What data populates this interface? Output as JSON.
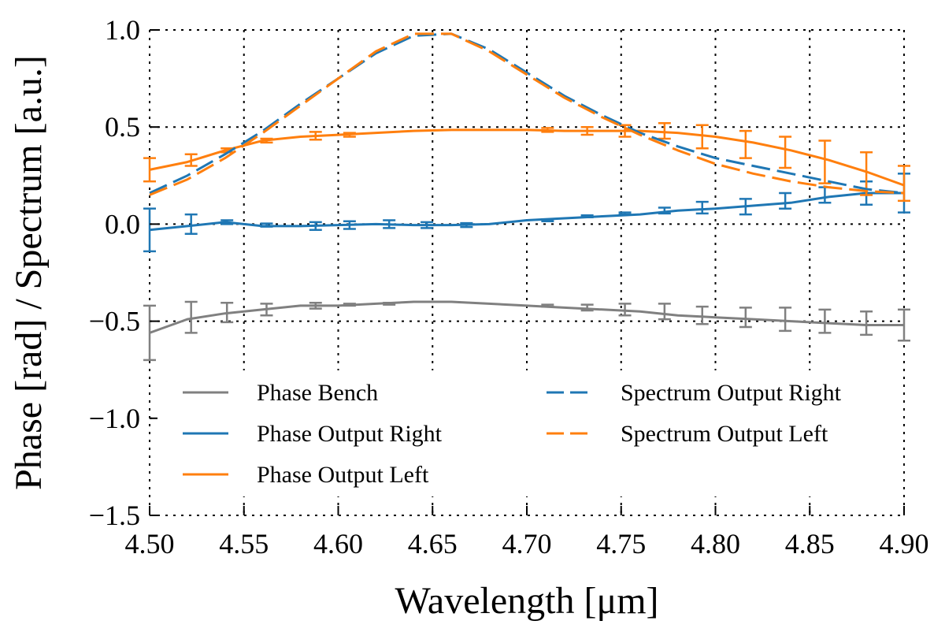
{
  "colors": {
    "bench": "#808080",
    "right": "#1f77b4",
    "left": "#ff7f0e",
    "grid": "#000000"
  },
  "chart_data": {
    "type": "line",
    "title": "",
    "xlabel": "Wavelength [μm]",
    "ylabel": "Phase [rad] / Spectrum [a.u.]",
    "xlim": [
      4.5,
      4.9
    ],
    "ylim": [
      -1.5,
      1.0
    ],
    "xticks": [
      4.5,
      4.55,
      4.6,
      4.65,
      4.7,
      4.75,
      4.8,
      4.85,
      4.9
    ],
    "xtick_labels": [
      "4.50",
      "4.55",
      "4.60",
      "4.65",
      "4.70",
      "4.75",
      "4.80",
      "4.85",
      "4.90"
    ],
    "yticks": [
      -1.5,
      -1.0,
      -0.5,
      0.0,
      0.5,
      1.0
    ],
    "ytick_labels": [
      "−1.5",
      "−1.0",
      "−0.5",
      "0.0",
      "0.5",
      "1.0"
    ],
    "grid": true,
    "legend_position": "lower-center",
    "series": [
      {
        "name": "Phase Bench",
        "key": "bench",
        "style": "solid",
        "x": [
          4.5,
          4.52,
          4.54,
          4.56,
          4.58,
          4.6,
          4.62,
          4.64,
          4.66,
          4.68,
          4.7,
          4.72,
          4.74,
          4.76,
          4.78,
          4.8,
          4.82,
          4.84,
          4.86,
          4.88,
          4.9
        ],
        "y": [
          -0.56,
          -0.49,
          -0.46,
          -0.44,
          -0.42,
          -0.42,
          -0.41,
          -0.4,
          -0.4,
          -0.41,
          -0.42,
          -0.43,
          -0.44,
          -0.45,
          -0.47,
          -0.48,
          -0.49,
          -0.5,
          -0.51,
          -0.52,
          -0.52
        ],
        "err": [
          {
            "x": 4.5,
            "y": -0.56,
            "e": 0.14
          },
          {
            "x": 4.522,
            "y": -0.48,
            "e": 0.08
          },
          {
            "x": 4.541,
            "y": -0.455,
            "e": 0.05
          },
          {
            "x": 4.562,
            "y": -0.44,
            "e": 0.03
          },
          {
            "x": 4.588,
            "y": -0.42,
            "e": 0.015
          },
          {
            "x": 4.606,
            "y": -0.415,
            "e": 0.005
          },
          {
            "x": 4.627,
            "y": -0.41,
            "e": 0.005
          },
          {
            "x": 4.711,
            "y": -0.42,
            "e": 0.005
          },
          {
            "x": 4.732,
            "y": -0.43,
            "e": 0.015
          },
          {
            "x": 4.752,
            "y": -0.44,
            "e": 0.03
          },
          {
            "x": 4.773,
            "y": -0.45,
            "e": 0.04
          },
          {
            "x": 4.793,
            "y": -0.47,
            "e": 0.045
          },
          {
            "x": 4.816,
            "y": -0.48,
            "e": 0.05
          },
          {
            "x": 4.837,
            "y": -0.49,
            "e": 0.06
          },
          {
            "x": 4.858,
            "y": -0.5,
            "e": 0.06
          },
          {
            "x": 4.88,
            "y": -0.51,
            "e": 0.06
          },
          {
            "x": 4.9,
            "y": -0.52,
            "e": 0.08
          }
        ]
      },
      {
        "name": "Phase Output Right",
        "key": "right",
        "style": "solid",
        "x": [
          4.5,
          4.52,
          4.54,
          4.56,
          4.58,
          4.6,
          4.62,
          4.64,
          4.66,
          4.68,
          4.7,
          4.72,
          4.74,
          4.76,
          4.78,
          4.8,
          4.82,
          4.84,
          4.86,
          4.88,
          4.9
        ],
        "y": [
          -0.03,
          -0.01,
          0.01,
          -0.01,
          -0.01,
          -0.005,
          0.0,
          -0.005,
          -0.005,
          0.0,
          0.02,
          0.03,
          0.04,
          0.05,
          0.07,
          0.08,
          0.095,
          0.11,
          0.14,
          0.16,
          0.16
        ],
        "err": [
          {
            "x": 4.5,
            "y": -0.03,
            "e": 0.11
          },
          {
            "x": 4.522,
            "y": 0.0,
            "e": 0.05
          },
          {
            "x": 4.541,
            "y": 0.01,
            "e": 0.01
          },
          {
            "x": 4.562,
            "y": -0.005,
            "e": 0.008
          },
          {
            "x": 4.588,
            "y": -0.01,
            "e": 0.02
          },
          {
            "x": 4.606,
            "y": -0.005,
            "e": 0.02
          },
          {
            "x": 4.627,
            "y": 0.0,
            "e": 0.02
          },
          {
            "x": 4.647,
            "y": -0.005,
            "e": 0.015
          },
          {
            "x": 4.668,
            "y": -0.005,
            "e": 0.01
          },
          {
            "x": 4.711,
            "y": 0.02,
            "e": 0.005
          },
          {
            "x": 4.732,
            "y": 0.04,
            "e": 0.005
          },
          {
            "x": 4.752,
            "y": 0.055,
            "e": 0.005
          },
          {
            "x": 4.773,
            "y": 0.07,
            "e": 0.015
          },
          {
            "x": 4.793,
            "y": 0.085,
            "e": 0.03
          },
          {
            "x": 4.816,
            "y": 0.09,
            "e": 0.04
          },
          {
            "x": 4.837,
            "y": 0.12,
            "e": 0.04
          },
          {
            "x": 4.858,
            "y": 0.15,
            "e": 0.04
          },
          {
            "x": 4.88,
            "y": 0.16,
            "e": 0.06
          },
          {
            "x": 4.9,
            "y": 0.16,
            "e": 0.1
          }
        ]
      },
      {
        "name": "Phase Output Left",
        "key": "left",
        "style": "solid",
        "x": [
          4.5,
          4.52,
          4.54,
          4.56,
          4.58,
          4.6,
          4.62,
          4.64,
          4.66,
          4.68,
          4.7,
          4.72,
          4.74,
          4.76,
          4.78,
          4.8,
          4.82,
          4.84,
          4.86,
          4.88,
          4.9
        ],
        "y": [
          0.28,
          0.32,
          0.38,
          0.43,
          0.45,
          0.46,
          0.47,
          0.48,
          0.485,
          0.485,
          0.485,
          0.48,
          0.48,
          0.48,
          0.47,
          0.45,
          0.42,
          0.38,
          0.33,
          0.27,
          0.2
        ],
        "err": [
          {
            "x": 4.5,
            "y": 0.28,
            "e": 0.06
          },
          {
            "x": 4.522,
            "y": 0.33,
            "e": 0.03
          },
          {
            "x": 4.541,
            "y": 0.38,
            "e": 0.01
          },
          {
            "x": 4.562,
            "y": 0.43,
            "e": 0.01
          },
          {
            "x": 4.588,
            "y": 0.455,
            "e": 0.02
          },
          {
            "x": 4.606,
            "y": 0.46,
            "e": 0.01
          },
          {
            "x": 4.711,
            "y": 0.485,
            "e": 0.01
          },
          {
            "x": 4.732,
            "y": 0.48,
            "e": 0.02
          },
          {
            "x": 4.752,
            "y": 0.48,
            "e": 0.03
          },
          {
            "x": 4.773,
            "y": 0.48,
            "e": 0.04
          },
          {
            "x": 4.793,
            "y": 0.45,
            "e": 0.06
          },
          {
            "x": 4.816,
            "y": 0.41,
            "e": 0.07
          },
          {
            "x": 4.837,
            "y": 0.37,
            "e": 0.08
          },
          {
            "x": 4.858,
            "y": 0.32,
            "e": 0.11
          },
          {
            "x": 4.88,
            "y": 0.26,
            "e": 0.11
          },
          {
            "x": 4.9,
            "y": 0.21,
            "e": 0.09
          }
        ]
      },
      {
        "name": "Spectrum Output Right",
        "key": "right",
        "style": "dashed",
        "x": [
          4.5,
          4.52,
          4.54,
          4.56,
          4.58,
          4.6,
          4.62,
          4.64,
          4.66,
          4.68,
          4.7,
          4.72,
          4.74,
          4.76,
          4.78,
          4.8,
          4.82,
          4.84,
          4.86,
          4.88,
          4.9
        ],
        "y": [
          0.16,
          0.25,
          0.36,
          0.48,
          0.62,
          0.75,
          0.88,
          0.97,
          0.98,
          0.9,
          0.78,
          0.66,
          0.56,
          0.47,
          0.4,
          0.34,
          0.3,
          0.26,
          0.22,
          0.18,
          0.16
        ],
        "err": []
      },
      {
        "name": "Spectrum Output Left",
        "key": "left",
        "style": "dashed",
        "x": [
          4.5,
          4.52,
          4.54,
          4.56,
          4.58,
          4.6,
          4.62,
          4.64,
          4.66,
          4.68,
          4.7,
          4.72,
          4.74,
          4.76,
          4.78,
          4.8,
          4.82,
          4.84,
          4.86,
          4.88,
          4.9
        ],
        "y": [
          0.15,
          0.23,
          0.34,
          0.47,
          0.61,
          0.75,
          0.89,
          0.98,
          0.98,
          0.89,
          0.77,
          0.65,
          0.55,
          0.46,
          0.38,
          0.31,
          0.26,
          0.22,
          0.19,
          0.17,
          0.16
        ],
        "err": []
      }
    ]
  }
}
